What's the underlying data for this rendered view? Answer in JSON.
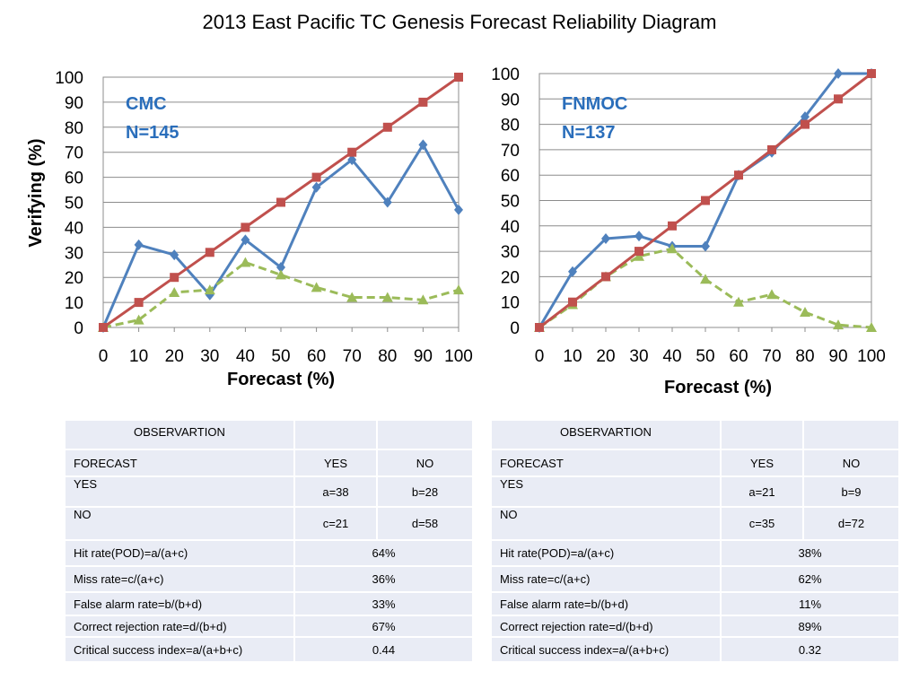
{
  "title": "2013 East Pacific TC Genesis Forecast Reliability Diagram",
  "colors": {
    "perfect": "#c0504d",
    "verifying": "#4f81bd",
    "frequency": "#9bbb59",
    "annotation": "#2a6ebb",
    "table_bg": "#e9ecf5"
  },
  "chart_data": [
    {
      "type": "line",
      "annotation": [
        "CMC",
        "N=145"
      ],
      "xlabel": "Forecast (%)",
      "ylabel": "Verifying (%)",
      "x": [
        0,
        10,
        20,
        30,
        40,
        50,
        60,
        70,
        80,
        90,
        100
      ],
      "xlim": [
        0,
        100
      ],
      "ylim": [
        0,
        100
      ],
      "xticks": [
        "0",
        "10",
        "20",
        "30",
        "40",
        "50",
        "60",
        "70",
        "80",
        "90",
        "100"
      ],
      "yticks": [
        "0",
        "10",
        "20",
        "30",
        "40",
        "50",
        "60",
        "70",
        "80",
        "90",
        "100"
      ],
      "grid": "horizontal",
      "series": [
        {
          "key": "verifying",
          "marker": "diamond",
          "style": "solid",
          "values": [
            0,
            33,
            29,
            13,
            35,
            24,
            56,
            67,
            50,
            73,
            47
          ]
        },
        {
          "key": "frequency",
          "marker": "triangle",
          "style": "dashed",
          "values": [
            0,
            3,
            14,
            15,
            26,
            21,
            16,
            12,
            12,
            11,
            15
          ]
        },
        {
          "key": "perfect",
          "marker": "square",
          "style": "solid",
          "values": [
            0,
            10,
            20,
            30,
            40,
            50,
            60,
            70,
            80,
            90,
            100
          ]
        }
      ]
    },
    {
      "type": "line",
      "annotation": [
        "FNMOC",
        "N=137"
      ],
      "xlabel": "Forecast (%)",
      "ylabel": "",
      "x": [
        0,
        10,
        20,
        30,
        40,
        50,
        60,
        70,
        80,
        90,
        100
      ],
      "xlim": [
        0,
        100
      ],
      "ylim": [
        0,
        100
      ],
      "xticks": [
        "0",
        "10",
        "20",
        "30",
        "40",
        "50",
        "60",
        "70",
        "80",
        "90",
        "100"
      ],
      "yticks": [
        "0",
        "10",
        "20",
        "30",
        "40",
        "50",
        "60",
        "70",
        "80",
        "90",
        "100"
      ],
      "grid": "horizontal",
      "series": [
        {
          "key": "verifying",
          "marker": "diamond",
          "style": "solid",
          "values": [
            0,
            22,
            35,
            36,
            32,
            32,
            60,
            69,
            83,
            100,
            100
          ]
        },
        {
          "key": "frequency",
          "marker": "triangle",
          "style": "dashed",
          "values": [
            0,
            9,
            20,
            28,
            31,
            19,
            10,
            13,
            6,
            1,
            0
          ]
        },
        {
          "key": "perfect",
          "marker": "square",
          "style": "solid",
          "values": [
            0,
            10,
            20,
            30,
            40,
            50,
            60,
            70,
            80,
            90,
            100
          ]
        }
      ]
    }
  ],
  "tables": [
    {
      "observation": "OBSERVARTION",
      "forecast": "FORECAST",
      "yes": "YES",
      "no": "NO",
      "row_yes": {
        "label": "YES",
        "a": "a=38",
        "b": "b=28"
      },
      "row_no": {
        "label": "NO",
        "c": "c=21",
        "d": "d=58"
      },
      "stats": [
        {
          "label": "Hit rate(POD)=a/(a+c)",
          "value": "64%"
        },
        {
          "label": "Miss rate=c/(a+c)",
          "value": "36%"
        },
        {
          "label": "False alarm rate=b/(b+d)",
          "value": "33%"
        },
        {
          "label": "Correct rejection rate=d/(b+d)",
          "value": "67%"
        },
        {
          "label": "Critical success index=a/(a+b+c)",
          "value": "0.44"
        }
      ]
    },
    {
      "observation": "OBSERVARTION",
      "forecast": "FORECAST",
      "yes": "YES",
      "no": "NO",
      "row_yes": {
        "label": "YES",
        "a": "a=21",
        "b": "b=9"
      },
      "row_no": {
        "label": "NO",
        "c": "c=35",
        "d": "d=72"
      },
      "stats": [
        {
          "label": "Hit rate(POD)=a/(a+c)",
          "value": "38%"
        },
        {
          "label": "Miss rate=c/(a+c)",
          "value": "62%"
        },
        {
          "label": "False alarm rate=b/(b+d)",
          "value": "11%"
        },
        {
          "label": "Correct rejection rate=d/(b+d)",
          "value": "89%"
        },
        {
          "label": "Critical success index=a/(a+b+c)",
          "value": "0.32"
        }
      ]
    }
  ]
}
